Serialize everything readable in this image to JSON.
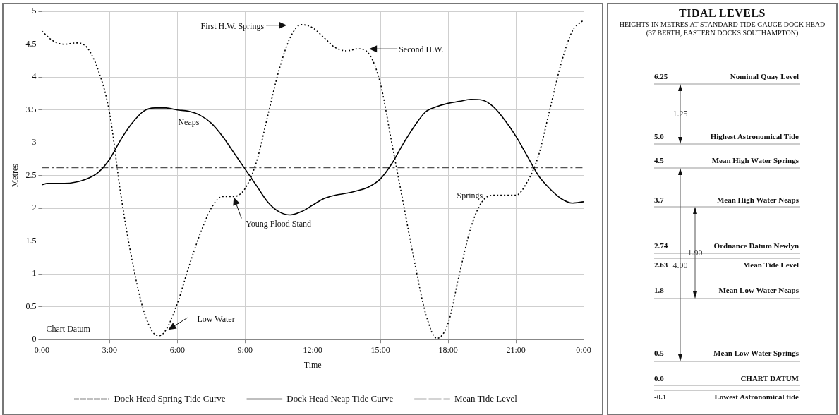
{
  "chart_data": [
    {
      "type": "line",
      "xlabel": "Time",
      "ylabel": "Metres",
      "xlim": [
        0,
        24
      ],
      "ylim": [
        0,
        5
      ],
      "xticks": [
        {
          "value": 0,
          "label": "0:00"
        },
        {
          "value": 3,
          "label": "3:00"
        },
        {
          "value": 6,
          "label": "6:00"
        },
        {
          "value": 9,
          "label": "9:00"
        },
        {
          "value": 12,
          "label": "12:00"
        },
        {
          "value": 15,
          "label": "15:00"
        },
        {
          "value": 18,
          "label": "18:00"
        },
        {
          "value": 21,
          "label": "21:00"
        },
        {
          "value": 24,
          "label": "0:00"
        }
      ],
      "yticks": [
        0,
        0.5,
        1,
        1.5,
        2,
        2.5,
        3,
        3.5,
        4,
        4.5,
        5
      ],
      "grid": true,
      "legend": "bottom",
      "marker": "none",
      "series": [
        {
          "name": "Dock Head Spring Tide Curve",
          "color": "#000000",
          "line_style": "dotted",
          "x": [
            0,
            0.5,
            1,
            1.5,
            2,
            2.5,
            3,
            3.5,
            4,
            4.5,
            5,
            5.2,
            5.5,
            6,
            6.5,
            7,
            7.5,
            8,
            8.5,
            9,
            9.5,
            10,
            10.5,
            11,
            11.5,
            12,
            12.5,
            13,
            13.5,
            14,
            14.5,
            15,
            15.5,
            16,
            16.5,
            17,
            17.5,
            18,
            18.5,
            19,
            19.5,
            20,
            21,
            21.5,
            22,
            22.5,
            23,
            23.5,
            24
          ],
          "values": [
            4.7,
            4.55,
            4.5,
            4.52,
            4.45,
            4.1,
            3.45,
            2.2,
            1.2,
            0.45,
            0.08,
            0.06,
            0.15,
            0.55,
            1.1,
            1.6,
            2.0,
            2.18,
            2.18,
            2.3,
            2.7,
            3.4,
            4.1,
            4.6,
            4.8,
            4.75,
            4.6,
            4.45,
            4.4,
            4.43,
            4.35,
            3.9,
            3.0,
            2.1,
            1.2,
            0.4,
            0.02,
            0.25,
            1.0,
            1.7,
            2.1,
            2.2,
            2.2,
            2.4,
            2.8,
            3.5,
            4.2,
            4.7,
            4.87
          ]
        },
        {
          "name": "Dock Head Neap Tide Curve",
          "color": "#000000",
          "line_style": "solid",
          "x": [
            0,
            0.25,
            1,
            1.5,
            2,
            2.5,
            3,
            3.5,
            4,
            4.5,
            5,
            5.5,
            6,
            6.5,
            7,
            7.5,
            8,
            8.5,
            9,
            9.5,
            10,
            10.5,
            11,
            11.5,
            12,
            12.5,
            13,
            13.5,
            14,
            14.5,
            15,
            15.5,
            16,
            16.5,
            17,
            17.5,
            18,
            18.5,
            19,
            19.5,
            20,
            20.5,
            21,
            21.5,
            22,
            22.5,
            23,
            23.5,
            24
          ],
          "values": [
            2.36,
            2.38,
            2.38,
            2.4,
            2.45,
            2.55,
            2.75,
            3.05,
            3.3,
            3.48,
            3.53,
            3.53,
            3.5,
            3.48,
            3.42,
            3.3,
            3.1,
            2.85,
            2.6,
            2.35,
            2.1,
            1.95,
            1.9,
            1.95,
            2.05,
            2.15,
            2.2,
            2.23,
            2.27,
            2.33,
            2.45,
            2.68,
            2.98,
            3.25,
            3.47,
            3.55,
            3.6,
            3.63,
            3.66,
            3.65,
            3.55,
            3.35,
            3.1,
            2.8,
            2.5,
            2.3,
            2.15,
            2.08,
            2.1
          ]
        },
        {
          "name": "Mean Tide Level",
          "color": "#555555",
          "line_style": "dashed",
          "x": [
            0,
            24
          ],
          "values": [
            2.62,
            2.62
          ]
        }
      ],
      "annotations": [
        "First H.W. Springs",
        {
          "text": "Second H.W.",
          "x": 14.5,
          "y": 4.43
        },
        {
          "text": "Young Flood Stand",
          "x": 8.5,
          "y": 2.17
        },
        {
          "text": "Low Water",
          "x": 5.6,
          "y": 0.15
        },
        "Neaps",
        "Springs",
        "Chart Datum"
      ]
    },
    {
      "type": "other",
      "title": "TIDAL LEVELS",
      "subtitle": "HEIGHTS IN METRES AT STANDARD TIDE GAUGE DOCK HEAD\n(37 BERTH, EASTERN DOCKS SOUTHAMPTON)",
      "annotations": [
        "6.25",
        "Nominal Quay Level",
        "5.0",
        "Highest Astronomical Tide",
        "4.5",
        "Mean High Water Springs",
        "3.7",
        "Mean High Water Neaps",
        "2.74",
        "Ordnance Datum Newlyn",
        "2.63",
        "Mean Tide Level",
        "1.8",
        "Mean Low Water Neaps",
        "0.5",
        "Mean Low Water Springs",
        "0.0",
        "CHART DATUM",
        "-0.1",
        "Lowest Astronomical tide",
        "1.25",
        "1.90",
        "4.00"
      ]
    }
  ]
}
